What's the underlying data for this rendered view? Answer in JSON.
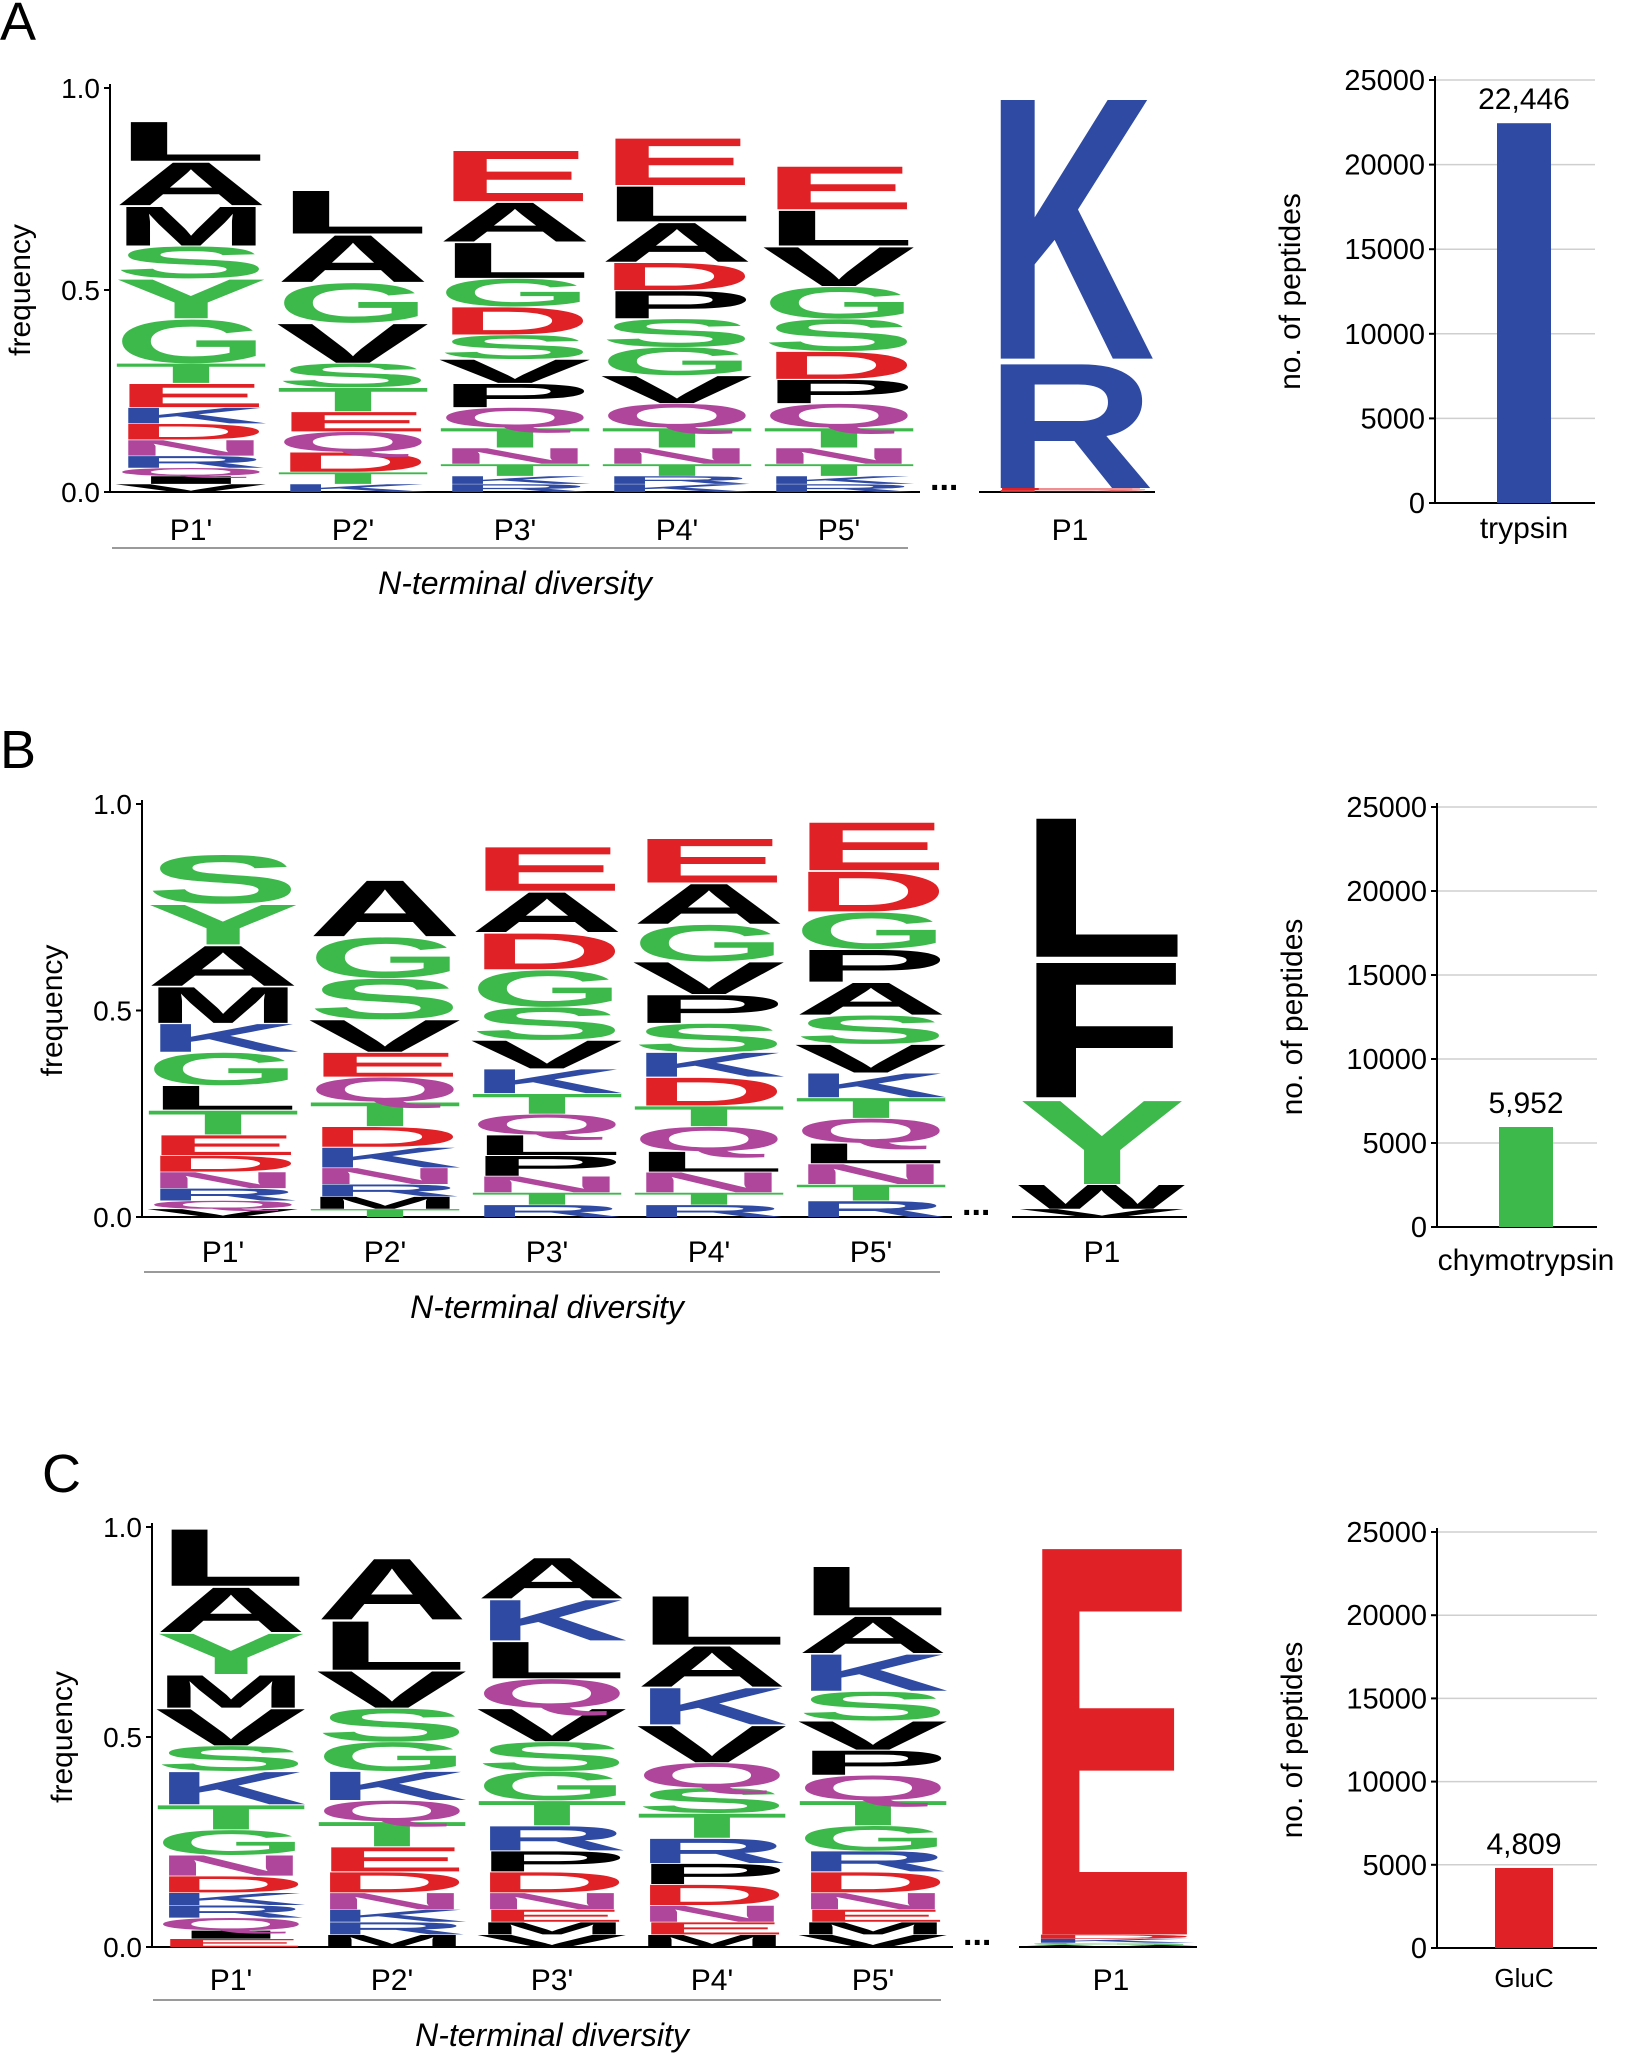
{
  "colors": {
    "acidic": "#e02126",
    "basic": "#2e4aa3",
    "polar": "#3db84a",
    "amide": "#b0459c",
    "hydrophobic": "#000000",
    "trypsin_bar": "#2e4aa3",
    "chymotrypsin_bar": "#3db84a",
    "gluc_bar": "#e02126"
  },
  "chart_data": [
    {
      "panel": "A",
      "type": "sequence_logo",
      "ylabel": "frequency",
      "yticks": [
        "0.0",
        "0.5",
        "1.0"
      ],
      "ylim": [
        0,
        1
      ],
      "positions": [
        "P1'",
        "P2'",
        "P3'",
        "P4'",
        "P5'",
        "P1"
      ],
      "group_label": "N-terminal diversity",
      "ellipsis": "...",
      "stacks": [
        [
          [
            "V",
            0.02
          ],
          [
            "I",
            0.02
          ],
          [
            "Q",
            0.02
          ],
          [
            "R",
            0.03
          ],
          [
            "N",
            0.04
          ],
          [
            "D",
            0.04
          ],
          [
            "K",
            0.04
          ],
          [
            "E",
            0.06
          ],
          [
            "T",
            0.05
          ],
          [
            "G",
            0.11
          ],
          [
            "Y",
            0.1
          ],
          [
            "S",
            0.08
          ],
          [
            "M",
            0.1
          ],
          [
            "A",
            0.11
          ],
          [
            "L",
            0.1
          ]
        ],
        [
          [
            "K",
            0.02
          ],
          [
            "T",
            0.03
          ],
          [
            "D",
            0.05
          ],
          [
            "Q",
            0.05
          ],
          [
            "E",
            0.05
          ],
          [
            "T",
            0.06
          ],
          [
            "S",
            0.06
          ],
          [
            "V",
            0.1
          ],
          [
            "G",
            0.1
          ],
          [
            "A",
            0.12
          ],
          [
            "L",
            0.11
          ]
        ],
        [
          [
            "R",
            0.02
          ],
          [
            "K",
            0.02
          ],
          [
            "T",
            0.03
          ],
          [
            "N",
            0.04
          ],
          [
            "T",
            0.05
          ],
          [
            "Q",
            0.05
          ],
          [
            "P",
            0.06
          ],
          [
            "V",
            0.06
          ],
          [
            "S",
            0.06
          ],
          [
            "D",
            0.07
          ],
          [
            "G",
            0.07
          ],
          [
            "L",
            0.09
          ],
          [
            "A",
            0.1
          ],
          [
            "E",
            0.13
          ]
        ],
        [
          [
            "K",
            0.02
          ],
          [
            "R",
            0.02
          ],
          [
            "T",
            0.03
          ],
          [
            "N",
            0.04
          ],
          [
            "T",
            0.05
          ],
          [
            "Q",
            0.06
          ],
          [
            "V",
            0.07
          ],
          [
            "G",
            0.07
          ],
          [
            "S",
            0.07
          ],
          [
            "P",
            0.07
          ],
          [
            "D",
            0.07
          ],
          [
            "A",
            0.1
          ],
          [
            "L",
            0.09
          ],
          [
            "E",
            0.12
          ]
        ],
        [
          [
            "R",
            0.02
          ],
          [
            "K",
            0.02
          ],
          [
            "T",
            0.03
          ],
          [
            "N",
            0.04
          ],
          [
            "T",
            0.05
          ],
          [
            "Q",
            0.06
          ],
          [
            "P",
            0.06
          ],
          [
            "D",
            0.07
          ],
          [
            "S",
            0.08
          ],
          [
            "G",
            0.08
          ],
          [
            "V",
            0.1
          ],
          [
            "L",
            0.09
          ],
          [
            "E",
            0.11
          ]
        ],
        [
          [
            "D",
            0.005
          ],
          [
            "E",
            0.005
          ],
          [
            "R",
            0.32
          ],
          [
            "K",
            0.67
          ]
        ]
      ],
      "bar": {
        "ylabel": "no. of peptides",
        "yticks": [
          "0",
          "5000",
          "10000",
          "15000",
          "20000",
          "25000"
        ],
        "ylim": [
          0,
          25000
        ],
        "category": "trypsin",
        "value": 22446,
        "value_label": "22,446"
      }
    },
    {
      "panel": "B",
      "type": "sequence_logo",
      "ylabel": "frequency",
      "yticks": [
        "0.0",
        "0.5",
        "1.0"
      ],
      "ylim": [
        0,
        1
      ],
      "positions": [
        "P1'",
        "P2'",
        "P3'",
        "P4'",
        "P5'",
        "P1"
      ],
      "group_label": "N-terminal diversity",
      "ellipsis": "...",
      "stacks": [
        [
          [
            "V",
            0.02
          ],
          [
            "Q",
            0.02
          ],
          [
            "R",
            0.03
          ],
          [
            "N",
            0.04
          ],
          [
            "D",
            0.04
          ],
          [
            "E",
            0.05
          ],
          [
            "T",
            0.06
          ],
          [
            "L",
            0.06
          ],
          [
            "G",
            0.08
          ],
          [
            "K",
            0.07
          ],
          [
            "M",
            0.09
          ],
          [
            "A",
            0.1
          ],
          [
            "Y",
            0.1
          ],
          [
            "S",
            0.12
          ]
        ],
        [
          [
            "T",
            0.02
          ],
          [
            "M",
            0.03
          ],
          [
            "R",
            0.03
          ],
          [
            "N",
            0.04
          ],
          [
            "K",
            0.05
          ],
          [
            "D",
            0.05
          ],
          [
            "T",
            0.06
          ],
          [
            "Q",
            0.06
          ],
          [
            "E",
            0.06
          ],
          [
            "V",
            0.08
          ],
          [
            "S",
            0.1
          ],
          [
            "G",
            0.1
          ],
          [
            "A",
            0.14
          ]
        ],
        [
          [
            "R",
            0.03
          ],
          [
            "T",
            0.03
          ],
          [
            "N",
            0.04
          ],
          [
            "P",
            0.05
          ],
          [
            "L",
            0.05
          ],
          [
            "Q",
            0.05
          ],
          [
            "T",
            0.05
          ],
          [
            "K",
            0.06
          ],
          [
            "V",
            0.07
          ],
          [
            "S",
            0.08
          ],
          [
            "G",
            0.09
          ],
          [
            "D",
            0.09
          ],
          [
            "A",
            0.1
          ],
          [
            "E",
            0.11
          ]
        ],
        [
          [
            "R",
            0.03
          ],
          [
            "T",
            0.03
          ],
          [
            "N",
            0.05
          ],
          [
            "L",
            0.05
          ],
          [
            "Q",
            0.06
          ],
          [
            "T",
            0.05
          ],
          [
            "D",
            0.07
          ],
          [
            "K",
            0.06
          ],
          [
            "S",
            0.07
          ],
          [
            "P",
            0.07
          ],
          [
            "V",
            0.08
          ],
          [
            "G",
            0.09
          ],
          [
            "A",
            0.1
          ],
          [
            "E",
            0.11
          ]
        ],
        [
          [
            "R",
            0.04
          ],
          [
            "T",
            0.04
          ],
          [
            "N",
            0.05
          ],
          [
            "L",
            0.05
          ],
          [
            "Q",
            0.06
          ],
          [
            "T",
            0.05
          ],
          [
            "K",
            0.06
          ],
          [
            "V",
            0.07
          ],
          [
            "S",
            0.07
          ],
          [
            "A",
            0.08
          ],
          [
            "P",
            0.08
          ],
          [
            "G",
            0.09
          ],
          [
            "D",
            0.1
          ],
          [
            "E",
            0.12
          ]
        ],
        [
          [
            "V",
            0.02
          ],
          [
            "W",
            0.06
          ],
          [
            "Y",
            0.21
          ],
          [
            "F",
            0.34
          ],
          [
            "L",
            0.35
          ]
        ]
      ],
      "bar": {
        "ylabel": "no. of peptides",
        "yticks": [
          "0",
          "5000",
          "10000",
          "15000",
          "20000",
          "25000"
        ],
        "ylim": [
          0,
          25000
        ],
        "category": "chymotrypsin",
        "value": 5952,
        "value_label": "5,952"
      }
    },
    {
      "panel": "C",
      "type": "sequence_logo",
      "ylabel": "frequency",
      "yticks": [
        "0.0",
        "0.5",
        "1.0"
      ],
      "ylim": [
        0,
        1
      ],
      "positions": [
        "P1'",
        "P2'",
        "P3'",
        "P4'",
        "P5'",
        "P1"
      ],
      "group_label": "N-terminal diversity",
      "ellipsis": "...",
      "stacks": [
        [
          [
            "E",
            0.02
          ],
          [
            "I",
            0.02
          ],
          [
            "Q",
            0.03
          ],
          [
            "R",
            0.03
          ],
          [
            "K",
            0.03
          ],
          [
            "D",
            0.04
          ],
          [
            "N",
            0.05
          ],
          [
            "G",
            0.06
          ],
          [
            "T",
            0.06
          ],
          [
            "K",
            0.08
          ],
          [
            "S",
            0.06
          ],
          [
            "V",
            0.09
          ],
          [
            "M",
            0.08
          ],
          [
            "Y",
            0.1
          ],
          [
            "A",
            0.11
          ],
          [
            "L",
            0.14
          ]
        ],
        [
          [
            "M",
            0.03
          ],
          [
            "R",
            0.03
          ],
          [
            "K",
            0.03
          ],
          [
            "N",
            0.04
          ],
          [
            "D",
            0.05
          ],
          [
            "E",
            0.06
          ],
          [
            "T",
            0.06
          ],
          [
            "Q",
            0.05
          ],
          [
            "K",
            0.07
          ],
          [
            "G",
            0.07
          ],
          [
            "S",
            0.08
          ],
          [
            "V",
            0.09
          ],
          [
            "L",
            0.12
          ],
          [
            "A",
            0.15
          ]
        ],
        [
          [
            "V",
            0.03
          ],
          [
            "M",
            0.03
          ],
          [
            "E",
            0.03
          ],
          [
            "N",
            0.04
          ],
          [
            "D",
            0.05
          ],
          [
            "P",
            0.05
          ],
          [
            "R",
            0.06
          ],
          [
            "T",
            0.06
          ],
          [
            "G",
            0.07
          ],
          [
            "S",
            0.07
          ],
          [
            "V",
            0.08
          ],
          [
            "Q",
            0.07
          ],
          [
            "L",
            0.09
          ],
          [
            "K",
            0.1
          ],
          [
            "A",
            0.1
          ]
        ],
        [
          [
            "M",
            0.03
          ],
          [
            "E",
            0.03
          ],
          [
            "N",
            0.04
          ],
          [
            "D",
            0.05
          ],
          [
            "P",
            0.05
          ],
          [
            "R",
            0.06
          ],
          [
            "T",
            0.06
          ],
          [
            "S",
            0.06
          ],
          [
            "Q",
            0.06
          ],
          [
            "V",
            0.09
          ],
          [
            "K",
            0.09
          ],
          [
            "A",
            0.1
          ],
          [
            "L",
            0.12
          ]
        ],
        [
          [
            "V",
            0.03
          ],
          [
            "M",
            0.03
          ],
          [
            "E",
            0.03
          ],
          [
            "N",
            0.04
          ],
          [
            "D",
            0.05
          ],
          [
            "R",
            0.05
          ],
          [
            "G",
            0.06
          ],
          [
            "T",
            0.06
          ],
          [
            "Q",
            0.06
          ],
          [
            "P",
            0.06
          ],
          [
            "V",
            0.07
          ],
          [
            "S",
            0.07
          ],
          [
            "K",
            0.09
          ],
          [
            "A",
            0.09
          ],
          [
            "L",
            0.12
          ]
        ],
        [
          [
            "V",
            0.005
          ],
          [
            "G",
            0.005
          ],
          [
            "K",
            0.01
          ],
          [
            "D",
            0.01
          ],
          [
            "E",
            0.96
          ]
        ]
      ],
      "bar": {
        "ylabel": "no. of peptides",
        "yticks": [
          "0",
          "5000",
          "10000",
          "15000",
          "20000",
          "25000"
        ],
        "ylim": [
          0,
          25000
        ],
        "category": "GluC",
        "value": 4809,
        "value_label": "4,809"
      }
    }
  ]
}
